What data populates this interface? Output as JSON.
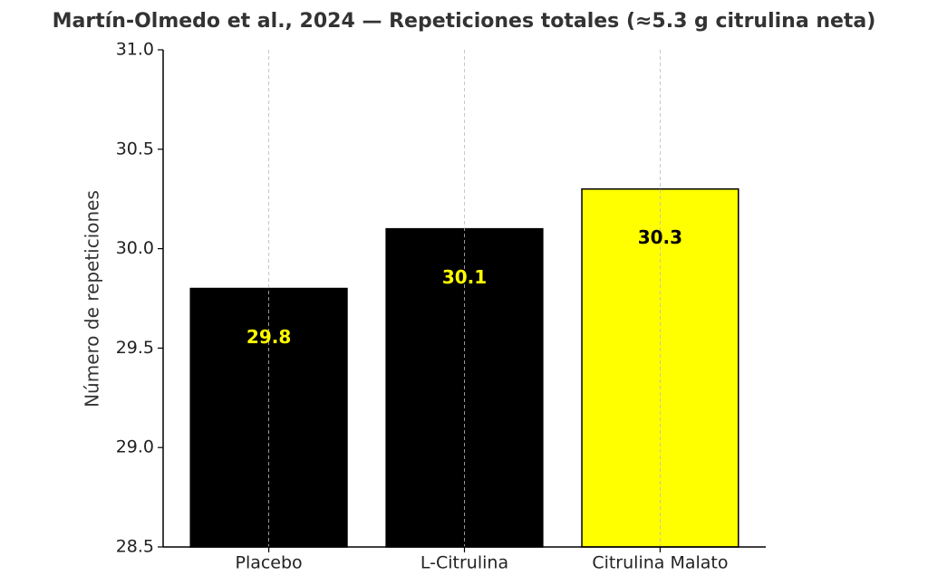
{
  "chart_data": {
    "type": "bar",
    "title": "Martín-Olmedo et al., 2024 — Repeticiones totales (≈5.3 g citrulina neta)",
    "y_label": "Número de repeticiones",
    "categories": [
      "Placebo",
      "L-Citrulina",
      "Citrulina Malato"
    ],
    "values": [
      29.8,
      30.1,
      30.3
    ],
    "colors": [
      "#000000",
      "#000000",
      "#ffff00"
    ],
    "label_colors": [
      "#ffff00",
      "#ffff00",
      "#000000"
    ],
    "ylim": [
      28.5,
      31.0
    ],
    "yticks": [
      28.5,
      {
        "value": 29.0,
        "label": "29.0"
      },
      29.5,
      {
        "value": 30.0,
        "label": "30.0"
      },
      30.5,
      {
        "value": 31.0,
        "label": "31.0"
      }
    ],
    "x_grid": true
  }
}
